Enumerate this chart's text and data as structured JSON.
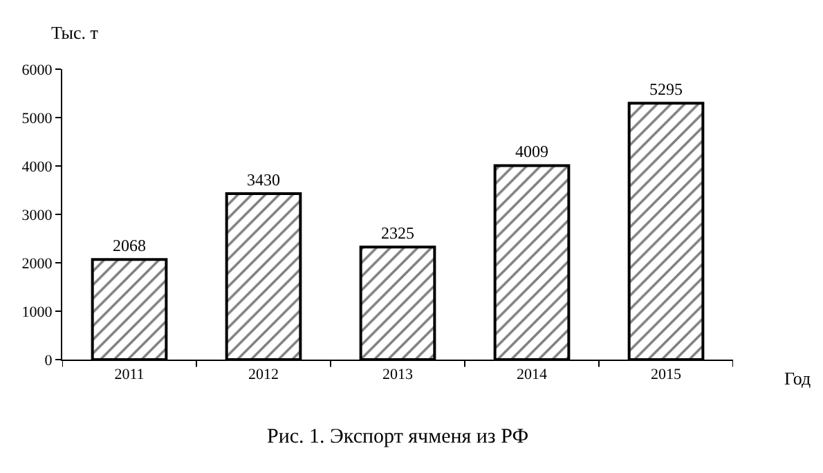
{
  "chart_data": {
    "type": "bar",
    "categories": [
      "2011",
      "2012",
      "2013",
      "2014",
      "2015"
    ],
    "values": [
      2068,
      3430,
      2325,
      4009,
      5295
    ],
    "color": "#000000",
    "ylabel": "Тыс. т",
    "xlabel": "Год",
    "ylim": [
      0,
      6000
    ],
    "yticks": [
      0,
      1000,
      2000,
      3000,
      4000,
      5000,
      6000
    ],
    "legend": false,
    "data_labels": true,
    "annotations": [
      "Рис. 1. Экспорт ячменя из РФ"
    ]
  }
}
